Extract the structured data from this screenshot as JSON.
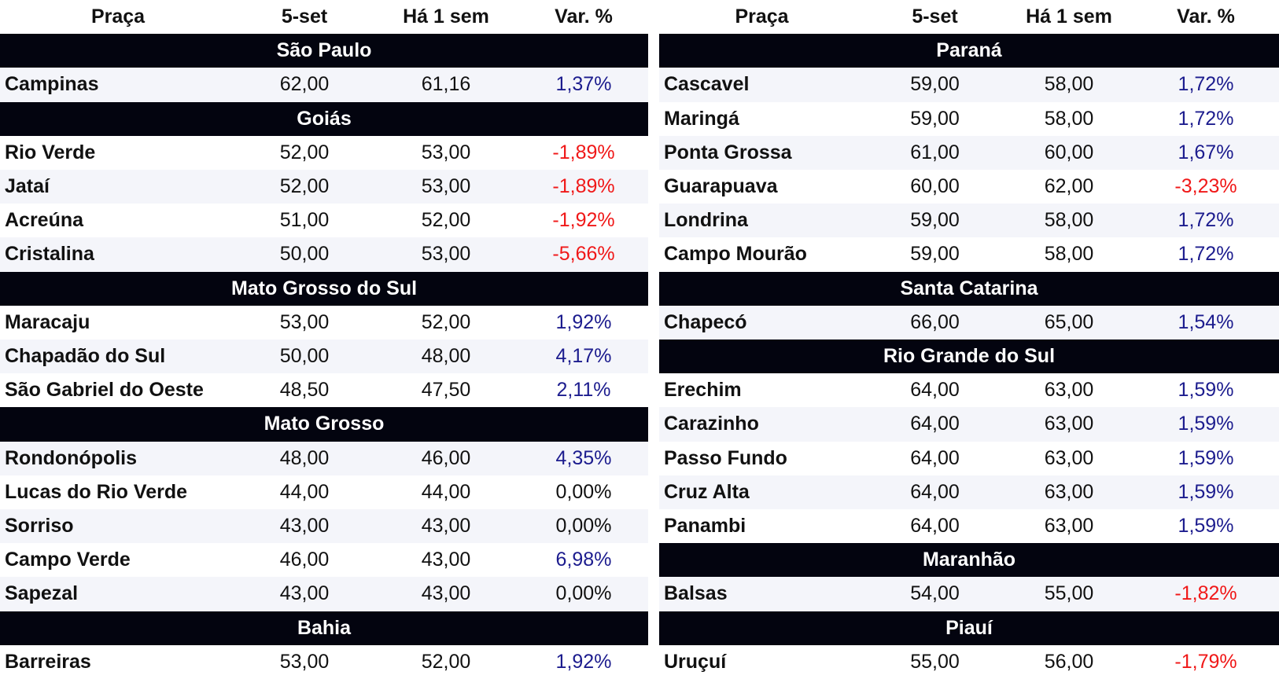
{
  "tables": [
    {
      "columns": [
        "Praça",
        "5-set",
        "Há 1 sem",
        "Var. %"
      ],
      "groups": [
        {
          "region": "São Paulo",
          "rows": [
            [
              "Campinas",
              "62,00",
              "61,16",
              "1,37%"
            ]
          ]
        },
        {
          "region": "Goiás",
          "rows": [
            [
              "Rio Verde",
              "52,00",
              "53,00",
              "-1,89%"
            ],
            [
              "Jataí",
              "52,00",
              "53,00",
              "-1,89%"
            ],
            [
              "Acreúna",
              "51,00",
              "52,00",
              "-1,92%"
            ],
            [
              "Cristalina",
              "50,00",
              "53,00",
              "-5,66%"
            ]
          ]
        },
        {
          "region": "Mato Grosso do Sul",
          "rows": [
            [
              "Maracaju",
              "53,00",
              "52,00",
              "1,92%"
            ],
            [
              "Chapadão do Sul",
              "50,00",
              "48,00",
              "4,17%"
            ],
            [
              "São Gabriel do Oeste",
              "48,50",
              "47,50",
              "2,11%"
            ]
          ]
        },
        {
          "region": "Mato Grosso",
          "rows": [
            [
              "Rondonópolis",
              "48,00",
              "46,00",
              "4,35%"
            ],
            [
              "Lucas do Rio Verde",
              "44,00",
              "44,00",
              "0,00%"
            ],
            [
              "Sorriso",
              "43,00",
              "43,00",
              "0,00%"
            ],
            [
              "Campo Verde",
              "46,00",
              "43,00",
              "6,98%"
            ],
            [
              "Sapezal",
              "43,00",
              "43,00",
              "0,00%"
            ]
          ]
        },
        {
          "region": "Bahia",
          "rows": [
            [
              "Barreiras",
              "53,00",
              "52,00",
              "1,92%"
            ]
          ]
        }
      ]
    },
    {
      "columns": [
        "Praça",
        "5-set",
        "Há 1 sem",
        "Var. %"
      ],
      "groups": [
        {
          "region": "Paraná",
          "rows": [
            [
              "Cascavel",
              "59,00",
              "58,00",
              "1,72%"
            ],
            [
              "Maringá",
              "59,00",
              "58,00",
              "1,72%"
            ],
            [
              "Ponta Grossa",
              "61,00",
              "60,00",
              "1,67%"
            ],
            [
              "Guarapuava",
              "60,00",
              "62,00",
              "-3,23%"
            ],
            [
              "Londrina",
              "59,00",
              "58,00",
              "1,72%"
            ],
            [
              "Campo Mourão",
              "59,00",
              "58,00",
              "1,72%"
            ]
          ]
        },
        {
          "region": "Santa Catarina",
          "rows": [
            [
              "Chapecó",
              "66,00",
              "65,00",
              "1,54%"
            ]
          ]
        },
        {
          "region": "Rio Grande do Sul",
          "rows": [
            [
              "Erechim",
              "64,00",
              "63,00",
              "1,59%"
            ],
            [
              "Carazinho",
              "64,00",
              "63,00",
              "1,59%"
            ],
            [
              "Passo Fundo",
              "64,00",
              "63,00",
              "1,59%"
            ],
            [
              "Cruz Alta",
              "64,00",
              "63,00",
              "1,59%"
            ],
            [
              "Panambi",
              "64,00",
              "63,00",
              "1,59%"
            ]
          ]
        },
        {
          "region": "Maranhão",
          "rows": [
            [
              "Balsas",
              "54,00",
              "55,00",
              "-1,82%"
            ]
          ]
        },
        {
          "region": "Piauí",
          "rows": [
            [
              "Uruçuí",
              "55,00",
              "56,00",
              "-1,79%"
            ]
          ]
        }
      ]
    }
  ]
}
